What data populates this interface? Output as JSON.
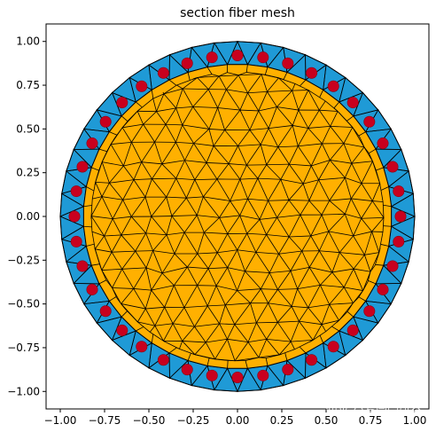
{
  "chart_data": {
    "type": "scatter",
    "title": "section fiber mesh",
    "xlabel": "",
    "ylabel": "",
    "xlim": [
      -1.08,
      1.08
    ],
    "ylim": [
      -1.1,
      1.1
    ],
    "x_ticks": [
      -1.0,
      -0.75,
      -0.5,
      -0.25,
      0.0,
      0.25,
      0.5,
      0.75,
      1.0
    ],
    "x_tick_labels": [
      "−1.00",
      "−0.75",
      "−0.50",
      "−0.25",
      "0.00",
      "0.25",
      "0.50",
      "0.75",
      "1.00"
    ],
    "y_ticks": [
      1.0,
      0.75,
      0.5,
      0.25,
      0.0,
      -0.25,
      -0.5,
      -0.75,
      -1.0
    ],
    "y_tick_labels": [
      "1.00",
      "0.75",
      "0.50",
      "0.25",
      "0.00",
      "−0.25",
      "−0.50",
      "−0.75",
      "−1.00"
    ],
    "grid": false,
    "legend": "none",
    "regions": [
      {
        "shape": "annulus",
        "inner_radius": 0.87,
        "outer_radius": 1.0,
        "color": "#1f9ad6",
        "edge_color": "#000000"
      },
      {
        "shape": "disk",
        "radius": 0.87,
        "color": "#ffb000",
        "edge_color": "#000000"
      }
    ],
    "rebar": {
      "count": 40,
      "radius": 0.92,
      "color": "#c8001e",
      "points": [
        [
          0.92,
          0.0
        ],
        [
          0.909,
          0.144
        ],
        [
          0.875,
          0.284
        ],
        [
          0.82,
          0.418
        ],
        [
          0.744,
          0.541
        ],
        [
          0.651,
          0.651
        ],
        [
          0.541,
          0.744
        ],
        [
          0.418,
          0.82
        ],
        [
          0.284,
          0.875
        ],
        [
          0.144,
          0.909
        ],
        [
          0.0,
          0.92
        ],
        [
          -0.144,
          0.909
        ],
        [
          -0.284,
          0.875
        ],
        [
          -0.418,
          0.82
        ],
        [
          -0.541,
          0.744
        ],
        [
          -0.651,
          0.651
        ],
        [
          -0.744,
          0.541
        ],
        [
          -0.82,
          0.418
        ],
        [
          -0.875,
          0.284
        ],
        [
          -0.909,
          0.144
        ],
        [
          -0.92,
          0.0
        ],
        [
          -0.909,
          -0.144
        ],
        [
          -0.875,
          -0.284
        ],
        [
          -0.82,
          -0.418
        ],
        [
          -0.744,
          -0.541
        ],
        [
          -0.651,
          -0.651
        ],
        [
          -0.541,
          -0.744
        ],
        [
          -0.418,
          -0.82
        ],
        [
          -0.284,
          -0.875
        ],
        [
          -0.144,
          -0.909
        ],
        [
          0.0,
          -0.92
        ],
        [
          0.144,
          -0.909
        ],
        [
          0.284,
          -0.875
        ],
        [
          0.418,
          -0.82
        ],
        [
          0.541,
          -0.744
        ],
        [
          0.651,
          -0.651
        ],
        [
          0.744,
          -0.541
        ],
        [
          0.82,
          -0.418
        ],
        [
          0.875,
          -0.284
        ],
        [
          0.909,
          -0.144
        ]
      ]
    }
  },
  "watermark": {
    "text": "知乎 @有同学研究"
  }
}
